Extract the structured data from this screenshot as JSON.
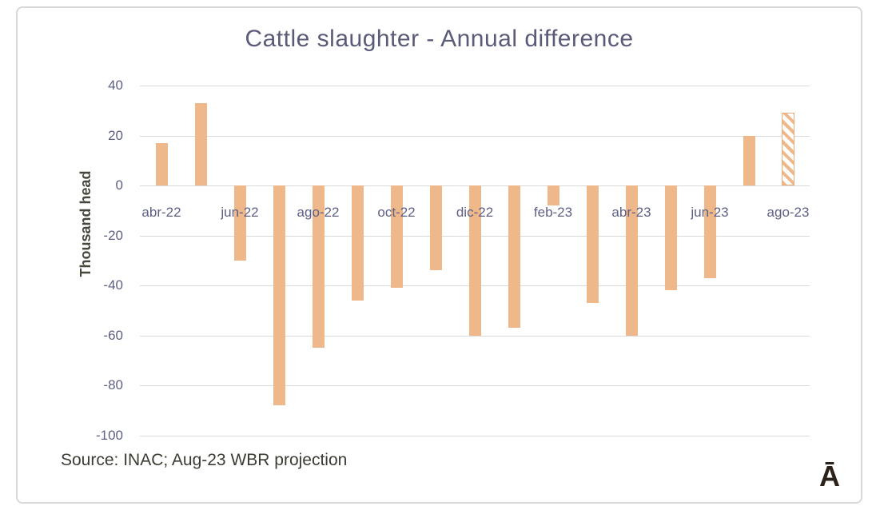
{
  "chart_data": {
    "type": "bar",
    "title": "Cattle slaughter - Annual difference",
    "ylabel": "Thousand head",
    "xlabel": "",
    "categories": [
      "abr-22",
      "may-22",
      "jun-22",
      "jul-22",
      "ago-22",
      "sep-22",
      "oct-22",
      "nov-22",
      "dic-22",
      "ene-23",
      "feb-23",
      "mar-23",
      "abr-23",
      "may-23",
      "jun-23",
      "jul-23",
      "ago-23"
    ],
    "values": [
      17,
      33,
      -30,
      -88,
      -65,
      -46,
      -41,
      -34,
      -60,
      -57,
      -8,
      -47,
      -60,
      -42,
      -37,
      20,
      29
    ],
    "x_tick_labels": [
      "abr-22",
      "jun-22",
      "ago-22",
      "oct-22",
      "dic-22",
      "feb-23",
      "abr-23",
      "jun-23",
      "ago-23"
    ],
    "y_ticks": [
      40,
      20,
      0,
      -20,
      -40,
      -60,
      -80,
      -100
    ],
    "ylim": [
      -100,
      40
    ],
    "grid": "horizontal",
    "legend": "none",
    "bar_color": "#eeb88a",
    "projection_category": "ago-23",
    "projection_style": "diagonal-hatch",
    "source_note": "Source: INAC; Aug-23 WBR projection",
    "logo_glyph": "Ā"
  }
}
